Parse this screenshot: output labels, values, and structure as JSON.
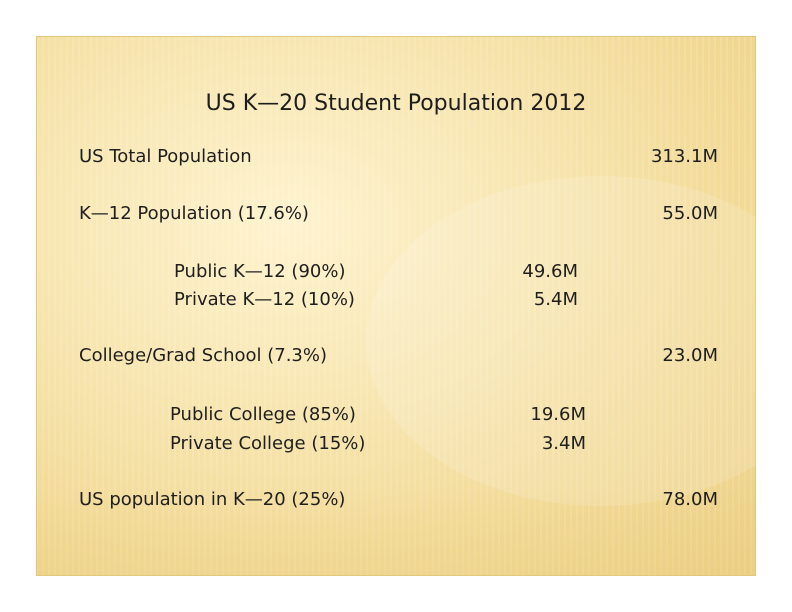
{
  "title": "US K—20 Student Population 2012",
  "rows": [
    {
      "label": "US Total Population",
      "value": "313.1M"
    },
    {
      "label": "K—12  Population (17.6%)",
      "value": "55.0M"
    },
    {
      "label": "Public K—12 (90%)",
      "value": "49.6M"
    },
    {
      "label": " Private K—12 (10%)",
      "value": "5.4M"
    },
    {
      "label": "College/Grad School (7.3%)",
      "value": "23.0M"
    },
    {
      "label": "Public College  (85%)",
      "value": "19.6M"
    },
    {
      "label": "Private College (15%)",
      "value": "3.4M"
    },
    {
      "label": "US population in K—20 (25%)",
      "value": "78.0M"
    }
  ]
}
